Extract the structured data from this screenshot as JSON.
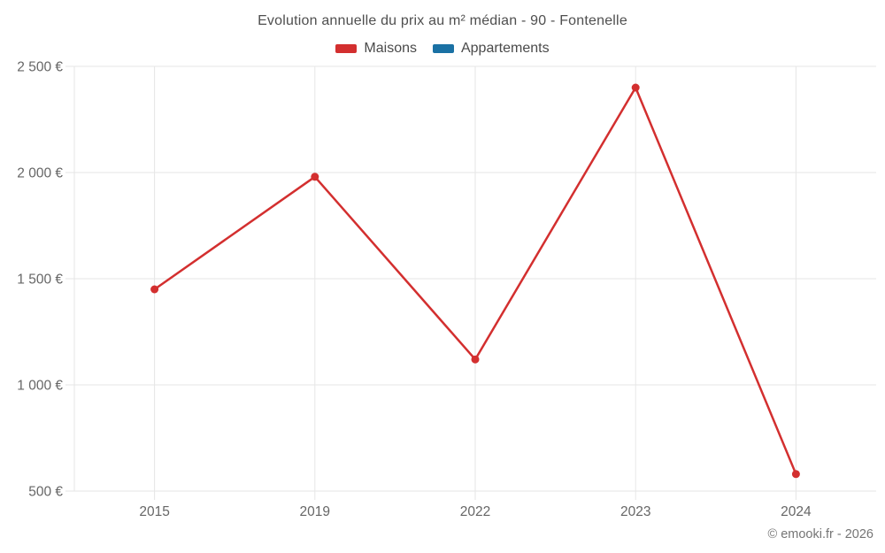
{
  "header": {
    "title": "Evolution annuelle du prix au m² médian - 90 - Fontenelle"
  },
  "footer": {
    "copyright": "© emooki.fr - 2026"
  },
  "colors": {
    "maisons": "#d32f2f",
    "appartements": "#1a71a4",
    "grid": "#e6e6e6",
    "tick_text": "#666666"
  },
  "chart_data": {
    "type": "line",
    "title": "Evolution annuelle du prix au m² médian - 90 - Fontenelle",
    "categories": [
      "2015",
      "2019",
      "2022",
      "2023",
      "2024"
    ],
    "series": [
      {
        "name": "Maisons",
        "color": "#d32f2f",
        "values": [
          1450,
          1980,
          1120,
          2400,
          580
        ]
      },
      {
        "name": "Appartements",
        "color": "#1a71a4",
        "values": []
      }
    ],
    "yticks": [
      500,
      1000,
      1500,
      2000,
      2500
    ],
    "ylim": [
      500,
      2500
    ],
    "ytick_suffix": " €",
    "thousands_separator": " ",
    "grid": true,
    "legend_position": "top",
    "marker": "circle"
  }
}
